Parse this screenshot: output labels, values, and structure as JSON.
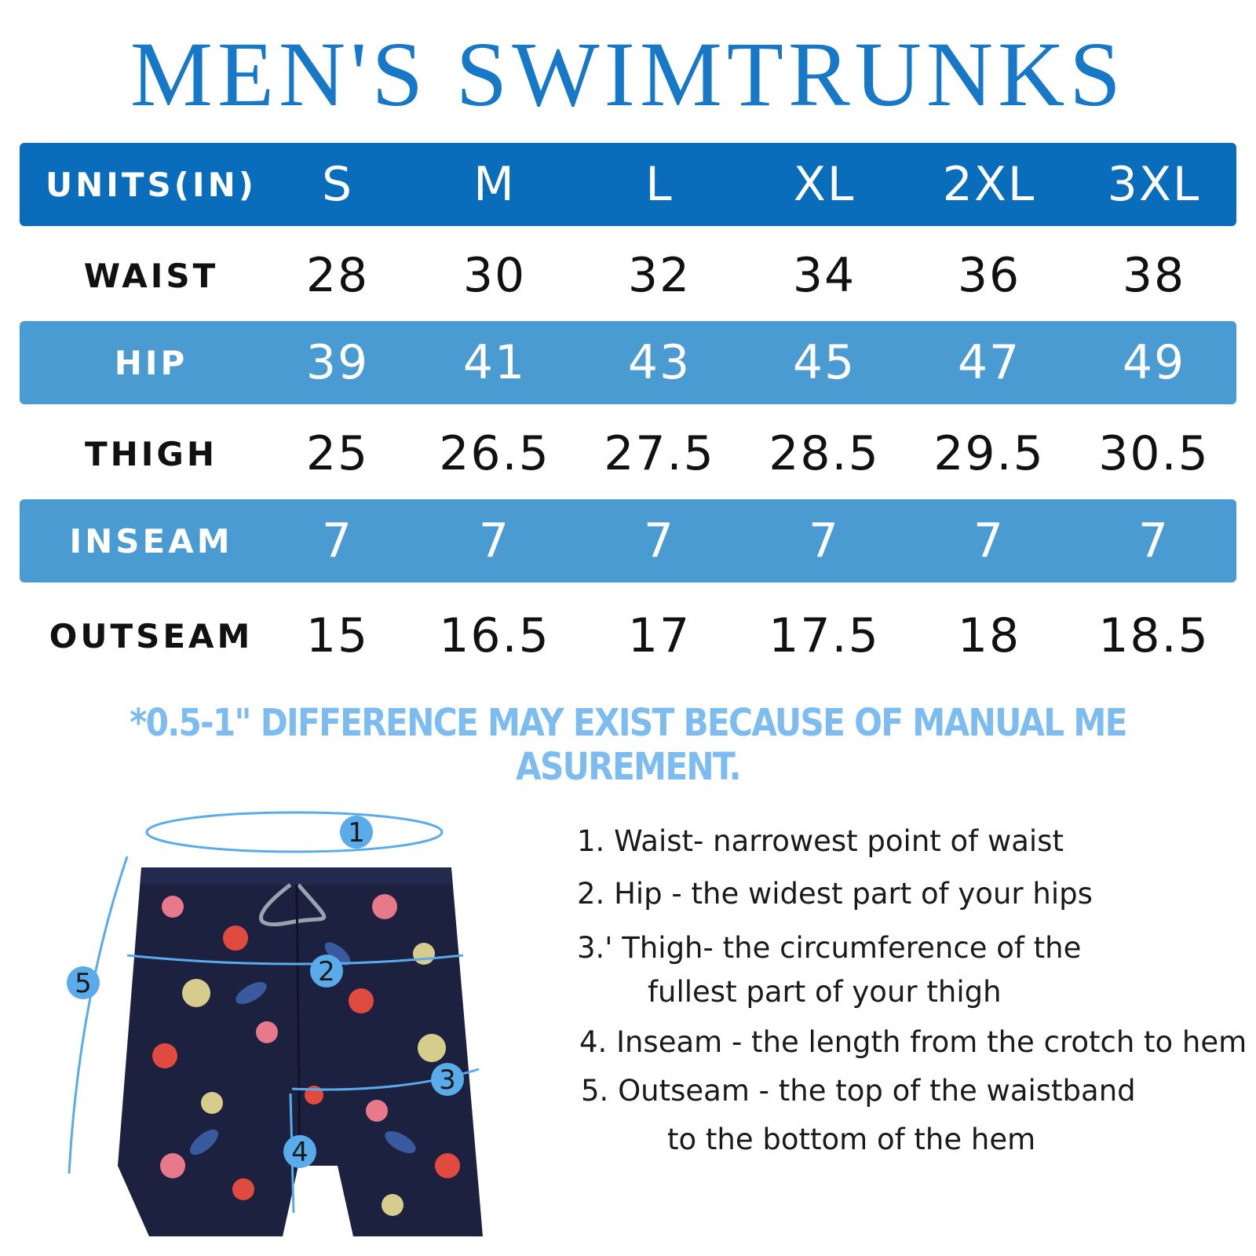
{
  "title": "MEN'S SWIMTRUNKS",
  "table": {
    "header_label": "UNITS(IN)",
    "sizes": [
      "S",
      "M",
      "L",
      "XL",
      "2XL",
      "3XL"
    ],
    "rows": [
      {
        "label": "WAIST",
        "values": [
          "28",
          "30",
          "32",
          "34",
          "36",
          "38"
        ]
      },
      {
        "label": "HIP",
        "values": [
          "39",
          "41",
          "43",
          "45",
          "47",
          "49"
        ]
      },
      {
        "label": "THIGH",
        "values": [
          "25",
          "26.5",
          "27.5",
          "28.5",
          "29.5",
          "30.5"
        ]
      },
      {
        "label": "INSEAM",
        "values": [
          "7",
          "7",
          "7",
          "7",
          "7",
          "7"
        ]
      },
      {
        "label": "OUTSEAM",
        "values": [
          "15",
          "16.5",
          "17",
          "17.5",
          "18",
          "18.5"
        ]
      }
    ]
  },
  "note": "*0.5-1\" DIFFERENCE MAY EXIST BECAUSE OF MANUAL ME ASUREMENT.",
  "figure": {
    "markers": [
      "1",
      "2",
      "3",
      "4",
      "5"
    ]
  },
  "instructions": {
    "line1": "1. Waist- narrowest point of waist",
    "line2": "2. Hip - the widest part of your hips",
    "line3a": "3.' Thigh- the circumference of the",
    "line3b": "fullest part of your thigh",
    "line4": "4. Inseam - the length from the crotch to hem",
    "line5a": "5. Outseam - the top of the waistband",
    "line5b": "to the bottom of the hem"
  },
  "colors": {
    "title": "#1878c8",
    "header_band": "#0a6dbb",
    "row_band": "#4b9bd3",
    "note": "#7cbcf0",
    "marker": "#5aabea",
    "shorts": "#1c2140"
  }
}
